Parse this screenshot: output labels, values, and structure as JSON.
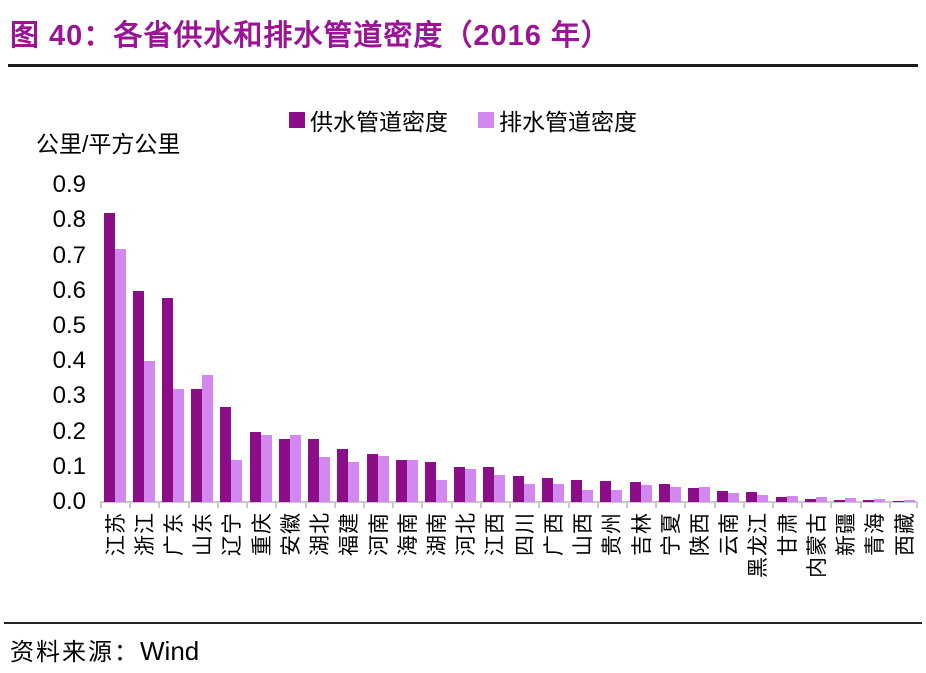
{
  "header": {
    "title": "图 40：各省供水和排水管道密度（2016 年）"
  },
  "title_color": "#9b1495",
  "source": {
    "prefix": "资料来源：",
    "name": "Wind"
  },
  "chart_data": {
    "type": "bar",
    "title": "各省供水和排水管道密度（2016 年）",
    "ylabel": "公里/平方公里",
    "xlabel": "",
    "ylim": [
      0,
      0.9
    ],
    "yticks": [
      "0.9",
      "0.8",
      "0.7",
      "0.6",
      "0.5",
      "0.4",
      "0.3",
      "0.2",
      "0.1",
      "0.0"
    ],
    "grid": false,
    "legend_position": "top",
    "categories": [
      "江苏",
      "浙江",
      "广东",
      "山东",
      "辽宁",
      "重庆",
      "安徽",
      "湖北",
      "福建",
      "河南",
      "海南",
      "湖南",
      "河北",
      "江西",
      "四川",
      "广西",
      "山西",
      "贵州",
      "吉林",
      "宁夏",
      "陕西",
      "云南",
      "黑龙江",
      "甘肃",
      "内蒙古",
      "新疆",
      "青海",
      "西藏"
    ],
    "series": [
      {
        "name": "供水管道密度",
        "color": "#8b0e88",
        "values": [
          0.82,
          0.6,
          0.58,
          0.32,
          0.27,
          0.2,
          0.18,
          0.18,
          0.15,
          0.135,
          0.12,
          0.113,
          0.1,
          0.1,
          0.075,
          0.068,
          0.063,
          0.06,
          0.056,
          0.05,
          0.04,
          0.032,
          0.027,
          0.014,
          0.009,
          0.007,
          0.005,
          0.003
        ]
      },
      {
        "name": "排水管道密度",
        "color": "#d388f0",
        "values": [
          0.72,
          0.4,
          0.32,
          0.36,
          0.12,
          0.19,
          0.19,
          0.127,
          0.115,
          0.13,
          0.118,
          0.062,
          0.094,
          0.078,
          0.05,
          0.05,
          0.033,
          0.035,
          0.047,
          0.042,
          0.042,
          0.026,
          0.02,
          0.017,
          0.014,
          0.011,
          0.008,
          0.005
        ]
      }
    ]
  }
}
